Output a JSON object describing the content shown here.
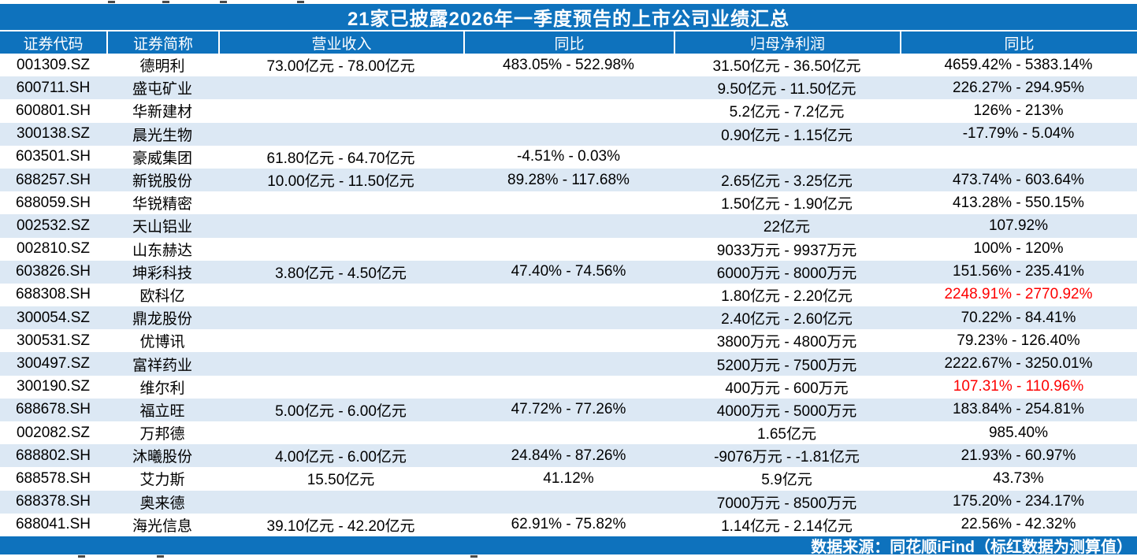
{
  "title": "21家已披露2026年一季度预告的上市公司业绩汇总",
  "footer": {
    "source_note": "数据来源：同花顺iFind（标红数据为测算值）"
  },
  "colors": {
    "header_blue": "#0e72bd",
    "row_alt_blue": "#dce8f4",
    "flag_red": "#fe0000"
  },
  "table": {
    "columns": [
      "证券代码",
      "证券简称",
      "营业收入",
      "同比",
      "归母净利润",
      "同比"
    ],
    "rows": [
      {
        "code": "001309.SZ",
        "name": "德明利",
        "revenue": "73.00亿元 - 78.00亿元",
        "revenue_yoy": "483.05% - 522.98%",
        "profit": "31.50亿元 - 36.50亿元",
        "profit_yoy": "4659.42% - 5383.14%",
        "profit_yoy_red": false
      },
      {
        "code": "600711.SH",
        "name": "盛屯矿业",
        "revenue": "",
        "revenue_yoy": "",
        "profit": "9.50亿元 - 11.50亿元",
        "profit_yoy": "226.27% - 294.95%",
        "profit_yoy_red": false
      },
      {
        "code": "600801.SH",
        "name": "华新建材",
        "revenue": "",
        "revenue_yoy": "",
        "profit": "5.2亿元 - 7.2亿元",
        "profit_yoy": "126% - 213%",
        "profit_yoy_red": false
      },
      {
        "code": "300138.SZ",
        "name": "晨光生物",
        "revenue": "",
        "revenue_yoy": "",
        "profit": "0.90亿元 - 1.15亿元",
        "profit_yoy": "-17.79% - 5.04%",
        "profit_yoy_red": false
      },
      {
        "code": "603501.SH",
        "name": "豪威集团",
        "revenue": "61.80亿元 - 64.70亿元",
        "revenue_yoy": "-4.51% - 0.03%",
        "profit": "",
        "profit_yoy": "",
        "profit_yoy_red": false
      },
      {
        "code": "688257.SH",
        "name": "新锐股份",
        "revenue": "10.00亿元 - 11.50亿元",
        "revenue_yoy": "89.28% - 117.68%",
        "profit": "2.65亿元 - 3.25亿元",
        "profit_yoy": "473.74% - 603.64%",
        "profit_yoy_red": false
      },
      {
        "code": "688059.SH",
        "name": "华锐精密",
        "revenue": "",
        "revenue_yoy": "",
        "profit": "1.50亿元 - 1.90亿元",
        "profit_yoy": "413.28% - 550.15%",
        "profit_yoy_red": false
      },
      {
        "code": "002532.SZ",
        "name": "天山铝业",
        "revenue": "",
        "revenue_yoy": "",
        "profit": "22亿元",
        "profit_yoy": "107.92%",
        "profit_yoy_red": false
      },
      {
        "code": "002810.SZ",
        "name": "山东赫达",
        "revenue": "",
        "revenue_yoy": "",
        "profit": "9033万元 - 9937万元",
        "profit_yoy": "100% - 120%",
        "profit_yoy_red": false
      },
      {
        "code": "603826.SH",
        "name": "坤彩科技",
        "revenue": "3.80亿元 - 4.50亿元",
        "revenue_yoy": "47.40% - 74.56%",
        "profit": "6000万元 - 8000万元",
        "profit_yoy": "151.56% - 235.41%",
        "profit_yoy_red": false
      },
      {
        "code": "688308.SH",
        "name": "欧科亿",
        "revenue": "",
        "revenue_yoy": "",
        "profit": "1.80亿元 - 2.20亿元",
        "profit_yoy": "2248.91% - 2770.92%",
        "profit_yoy_red": true
      },
      {
        "code": "300054.SZ",
        "name": "鼎龙股份",
        "revenue": "",
        "revenue_yoy": "",
        "profit": "2.40亿元 - 2.60亿元",
        "profit_yoy": "70.22% - 84.41%",
        "profit_yoy_red": false
      },
      {
        "code": "300531.SZ",
        "name": "优博讯",
        "revenue": "",
        "revenue_yoy": "",
        "profit": "3800万元 - 4800万元",
        "profit_yoy": "79.23% - 126.40%",
        "profit_yoy_red": false
      },
      {
        "code": "300497.SZ",
        "name": "富祥药业",
        "revenue": "",
        "revenue_yoy": "",
        "profit": "5200万元 - 7500万元",
        "profit_yoy": "2222.67% - 3250.01%",
        "profit_yoy_red": false
      },
      {
        "code": "300190.SZ",
        "name": "维尔利",
        "revenue": "",
        "revenue_yoy": "",
        "profit": "400万元 - 600万元",
        "profit_yoy": "107.31% - 110.96%",
        "profit_yoy_red": true
      },
      {
        "code": "688678.SH",
        "name": "福立旺",
        "revenue": "5.00亿元 - 6.00亿元",
        "revenue_yoy": "47.72% - 77.26%",
        "profit": "4000万元 - 5000万元",
        "profit_yoy": "183.84% - 254.81%",
        "profit_yoy_red": false
      },
      {
        "code": "002082.SZ",
        "name": "万邦德",
        "revenue": "",
        "revenue_yoy": "",
        "profit": "1.65亿元",
        "profit_yoy": "985.40%",
        "profit_yoy_red": false
      },
      {
        "code": "688802.SH",
        "name": "沐曦股份",
        "revenue": "4.00亿元 - 6.00亿元",
        "revenue_yoy": "24.84% - 87.26%",
        "profit": "-9076万元 - -1.81亿元",
        "profit_yoy": "21.93% - 60.97%",
        "profit_yoy_red": false
      },
      {
        "code": "688578.SH",
        "name": "艾力斯",
        "revenue": "15.50亿元",
        "revenue_yoy": "41.12%",
        "profit": "5.9亿元",
        "profit_yoy": "43.73%",
        "profit_yoy_red": false
      },
      {
        "code": "688378.SH",
        "name": "奥来德",
        "revenue": "",
        "revenue_yoy": "",
        "profit": "7000万元 - 8500万元",
        "profit_yoy": "175.20% - 234.17%",
        "profit_yoy_red": false
      },
      {
        "code": "688041.SH",
        "name": "海光信息",
        "revenue": "39.10亿元 - 42.20亿元",
        "revenue_yoy": "62.91% - 75.82%",
        "profit": "1.14亿元 - 2.14亿元",
        "profit_yoy": "22.56% - 42.32%",
        "profit_yoy_red": false
      }
    ]
  }
}
